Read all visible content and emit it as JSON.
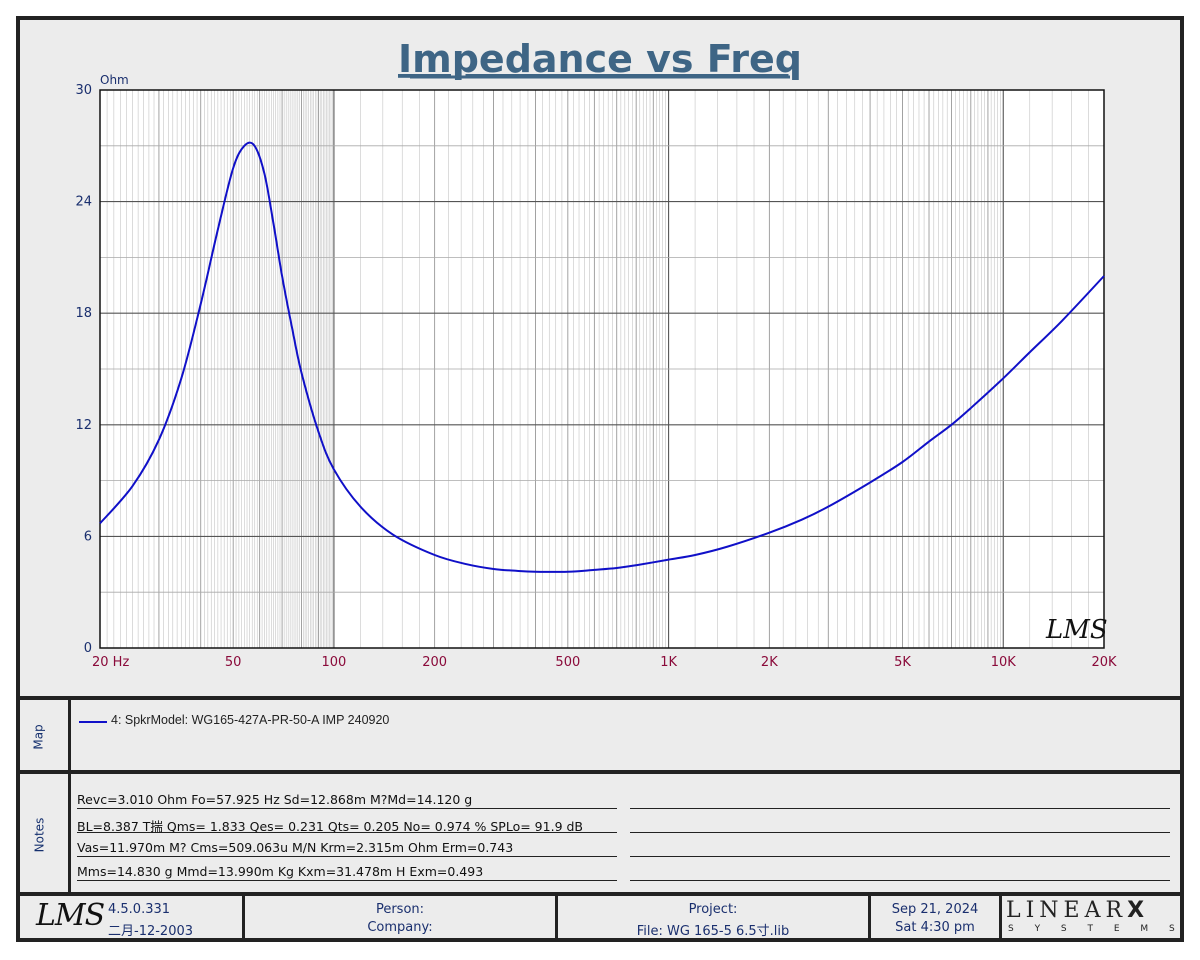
{
  "chart_data": {
    "type": "line",
    "title": "Impedance vs Freq",
    "ylabel": "Ohm",
    "xscale": "log",
    "xlim": [
      20,
      20000
    ],
    "ylim": [
      0,
      30
    ],
    "grid": true,
    "y_ticks": [
      "0",
      "6",
      "12",
      "18",
      "24",
      "30"
    ],
    "x_ticks": [
      {
        "value": 20,
        "label": "20  Hz"
      },
      {
        "value": 50,
        "label": "50"
      },
      {
        "value": 100,
        "label": "100"
      },
      {
        "value": 200,
        "label": "200"
      },
      {
        "value": 500,
        "label": "500"
      },
      {
        "value": 1000,
        "label": "1K"
      },
      {
        "value": 2000,
        "label": "2K"
      },
      {
        "value": 5000,
        "label": "5K"
      },
      {
        "value": 10000,
        "label": "10K"
      },
      {
        "value": 20000,
        "label": "20K"
      }
    ],
    "series": [
      {
        "name": "4: SpkrModel: WG165-427A-PR-50-A IMP 240920",
        "color": "#1010c8",
        "x": [
          20,
          25,
          30,
          35,
          40,
          45,
          50,
          54,
          57.9,
          62,
          66,
          70,
          75,
          80,
          90,
          100,
          120,
          150,
          200,
          250,
          300,
          350,
          400,
          500,
          600,
          700,
          800,
          1000,
          1200,
          1500,
          2000,
          2500,
          3000,
          4000,
          5000,
          6000,
          7000,
          8000,
          10000,
          12000,
          15000,
          20000
        ],
        "y": [
          6.7,
          8.7,
          11.2,
          14.5,
          18.5,
          22.5,
          25.8,
          27.0,
          27.0,
          25.5,
          22.8,
          20.0,
          17.2,
          14.8,
          11.6,
          9.6,
          7.6,
          6.1,
          5.0,
          4.5,
          4.25,
          4.15,
          4.1,
          4.1,
          4.2,
          4.3,
          4.45,
          4.75,
          5.0,
          5.45,
          6.2,
          6.9,
          7.6,
          8.9,
          10.0,
          11.1,
          12.0,
          12.9,
          14.5,
          15.9,
          17.6,
          20.0
        ]
      }
    ],
    "watermark": "LMS"
  },
  "legend_label": "Map",
  "legend_entry": "4: SpkrModel: WG165-427A-PR-50-A IMP 240920",
  "notes_label": "Notes",
  "notes": [
    "Revc=3.010 Ohm  Fo=57.925 Hz  Sd=12.868m M?Md=14.120 g",
    "BL=8.387 T揣  Qms= 1.833  Qes= 0.231  Qts= 0.205  No= 0.974 %  SPLo= 91.9 dB",
    "Vas=11.970m M? Cms=509.063u M/N  Krm=2.315m Ohm  Erm=0.743",
    "Mms=14.830 g  Mmd=13.990m Kg  Kxm=31.478m H  Exm=0.493"
  ],
  "footer": {
    "logo": "LMS",
    "version": "4.5.0.331",
    "version_date": "二月-12-2003",
    "person": "Person:",
    "company": "Company:",
    "project": "Project:",
    "file": "File: WG 165-5 6.5寸.lib",
    "date": "Sep 21, 2024",
    "time": "Sat  4:30 pm",
    "brand": "LINEAR",
    "brand_x": "X",
    "brand_sub": "S Y S T E M S"
  },
  "colors": {
    "title": "#3e6585",
    "axis_text": "#1a2f6e",
    "x_tick_text": "#8a0a3a",
    "curve": "#1010c8",
    "grid": "#8c8c8c",
    "grid_bold": "#555555"
  }
}
